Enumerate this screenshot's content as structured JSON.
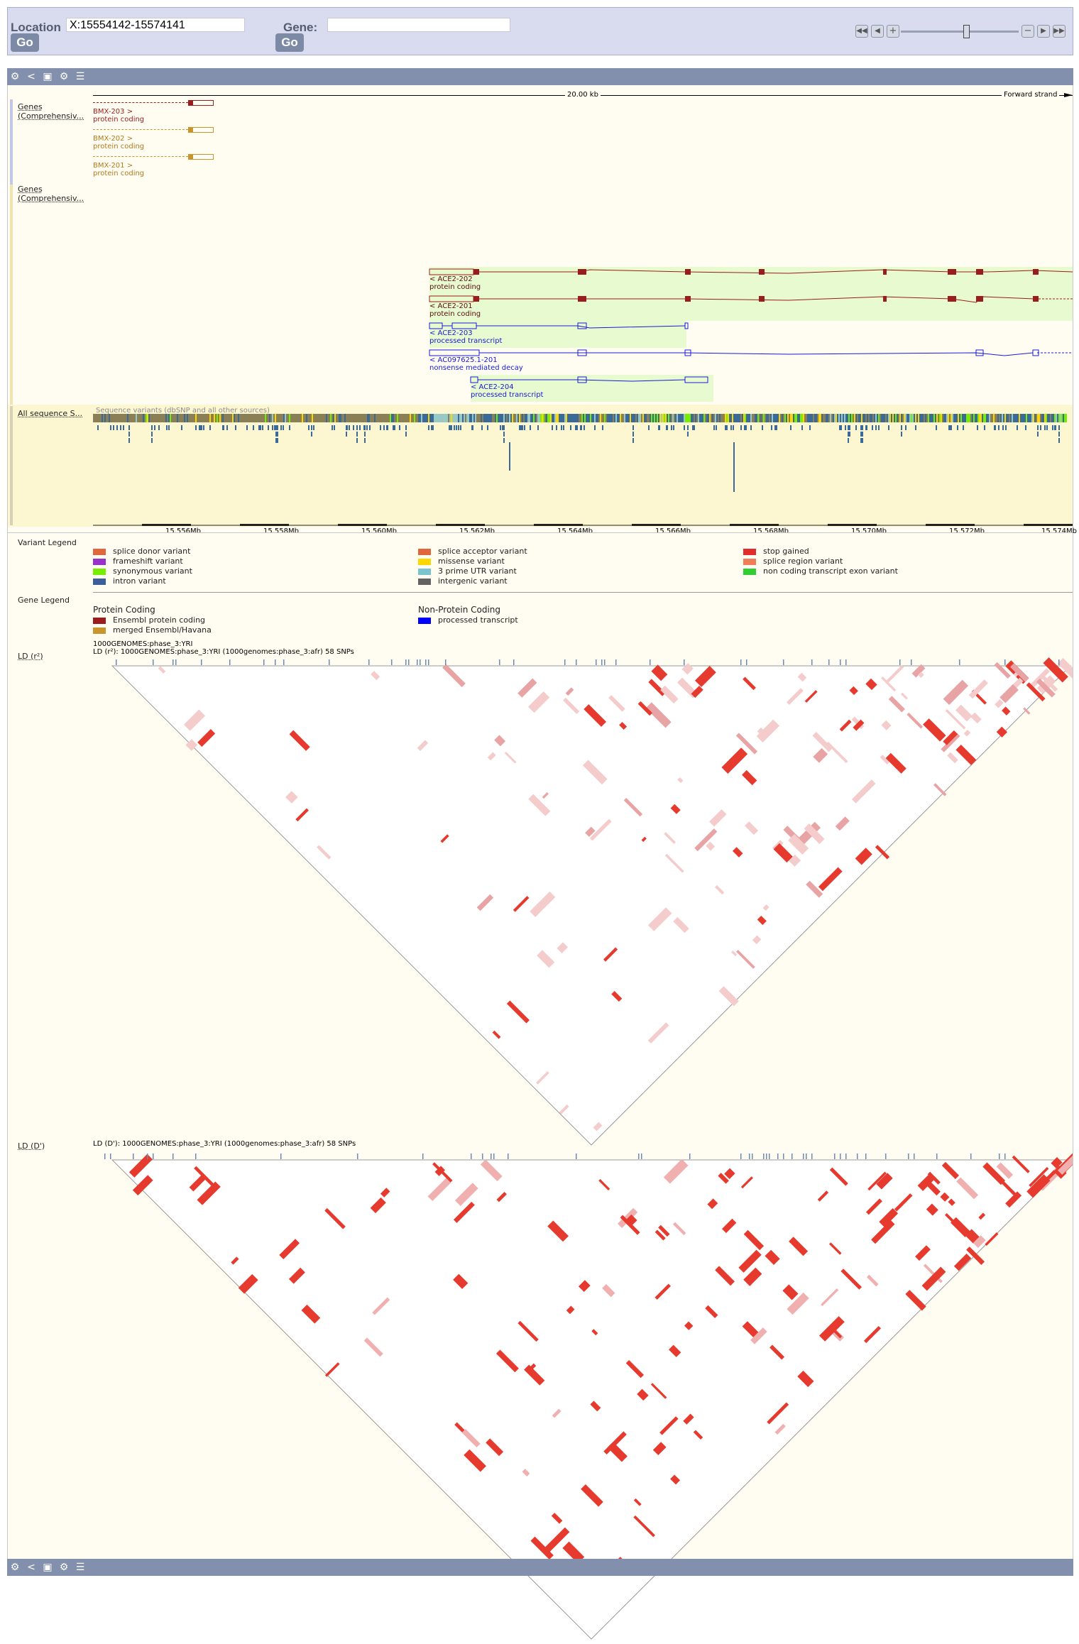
{
  "search": {
    "location_label": "Location",
    "location_value": "X:15554142-15574141",
    "gene_label": "Gene:",
    "gene_value": "",
    "go_label": "Go"
  },
  "genes_track_1": {
    "label": "Genes (Comprehensiv...",
    "transcripts": [
      {
        "name": "BMX-203 >",
        "biotype": "protein coding"
      },
      {
        "name": "BMX-202 >",
        "biotype": "protein coding"
      },
      {
        "name": "BMX-201 >",
        "biotype": "protein coding"
      }
    ]
  },
  "ruler": {
    "length": "20.00 kb",
    "strand": "Forward strand"
  },
  "genes_track_2": {
    "label": "Genes (Comprehensiv...",
    "transcripts": [
      {
        "name": "< ACE2-202",
        "biotype": "protein coding"
      },
      {
        "name": "< ACE2-201",
        "biotype": "protein coding"
      },
      {
        "name": "< ACE2-203",
        "biotype": "processed transcript"
      },
      {
        "name": "< AC097625.1-201",
        "biotype": "nonsense mediated decay"
      },
      {
        "name": "< ACE2-204",
        "biotype": "processed transcript"
      }
    ]
  },
  "variants_track": {
    "label": "All sequence S...",
    "caption": "Sequence variants (dbSNP and all other sources)"
  },
  "axis": {
    "ticks": [
      "15.556Mb",
      "15.558Mb",
      "15.560Mb",
      "15.562Mb",
      "15.564Mb",
      "15.566Mb",
      "15.568Mb",
      "15.570Mb",
      "15.572Mb",
      "15.574Mb"
    ]
  },
  "variant_legend": {
    "title": "Variant Legend",
    "items": [
      {
        "label": "splice donor variant",
        "color": "#e0673c"
      },
      {
        "label": "frameshift variant",
        "color": "#9932cc"
      },
      {
        "label": "synonymous variant",
        "color": "#76ee00"
      },
      {
        "label": "intron variant",
        "color": "#02599c"
      },
      {
        "label": "splice acceptor variant",
        "color": "#e0673c"
      },
      {
        "label": "missense variant",
        "color": "#ffd700"
      },
      {
        "label": "3 prime UTR variant",
        "color": "#7ac5cd"
      },
      {
        "label": "intergenic variant",
        "color": "#636363"
      },
      {
        "label": "stop gained",
        "color": "#e22b2b"
      },
      {
        "label": "splice region variant",
        "color": "#ee7f58"
      },
      {
        "label": "non coding transcript exon variant",
        "color": "#32cd32"
      }
    ]
  },
  "gene_legend": {
    "title": "Gene Legend",
    "protein_coding_title": "Protein Coding",
    "non_protein_coding_title": "Non-Protein Coding",
    "items": [
      {
        "label": "Ensembl protein coding",
        "color": "#9b1c1c"
      },
      {
        "label": "merged Ensembl/Havana",
        "color": "#c8962c"
      },
      {
        "label": "processed transcript",
        "color": "#0000ff"
      }
    ]
  },
  "ld_r2": {
    "label": "LD (r²)",
    "population": "1000GENOMES:phase_3:YRI",
    "caption": "LD (r²): 1000GENOMES:phase_3:YRI   (1000genomes:phase_3:afr)    58 SNPs"
  },
  "ld_d": {
    "label": "LD (D')",
    "caption": "LD (D'): 1000GENOMES:phase_3:YRI   (1000genomes:phase_3:afr)    58 SNPs"
  },
  "colors": {
    "toolbar": "#8390ad",
    "ld_strong": "#e63a2e",
    "ld_light": "#f5c5c5",
    "transcript_coding": "#9b1c1c",
    "transcript_noncoding": "#1a1ad6",
    "highlight": "#e8fad0"
  }
}
